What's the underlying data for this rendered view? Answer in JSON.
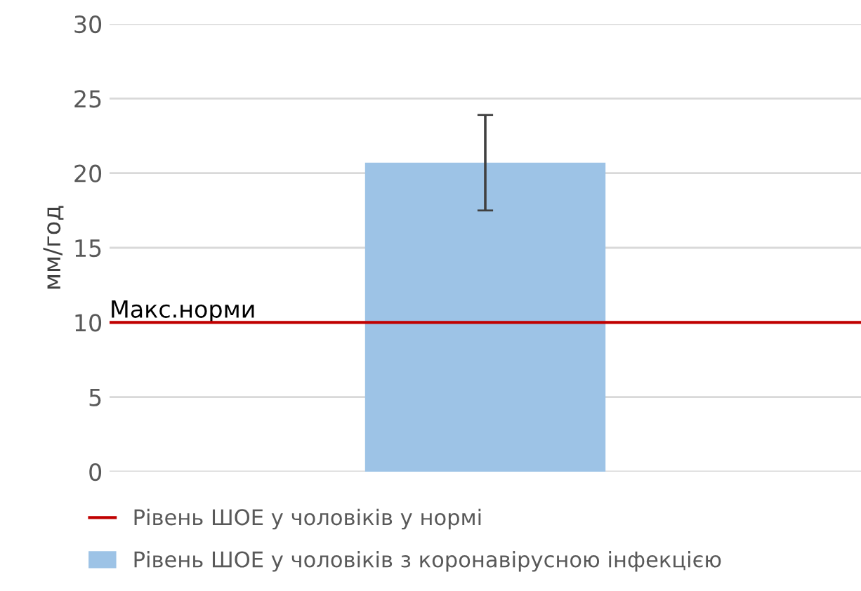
{
  "chart_data": {
    "type": "bar",
    "categories": [
      null
    ],
    "ylabel": "мм/год",
    "ylim": [
      0,
      30
    ],
    "yticks": [
      0,
      5,
      10,
      15,
      20,
      25,
      30
    ],
    "grid": "y",
    "legend": "bottom",
    "series": [
      {
        "name": "Рівень ШОЕ у чоловіків з коронавірусною інфекцією",
        "color": "#9dc3e6",
        "values": [
          20.7
        ],
        "errors": [
          [
            17.5,
            23.9
          ]
        ]
      }
    ],
    "ref_lines": [
      {
        "axis": "y",
        "value": 10,
        "label": "Макс.норми",
        "color": "#c00000"
      }
    ],
    "annotations": [
      "Рівень ШОЕ у чоловіків у нормі"
    ]
  }
}
